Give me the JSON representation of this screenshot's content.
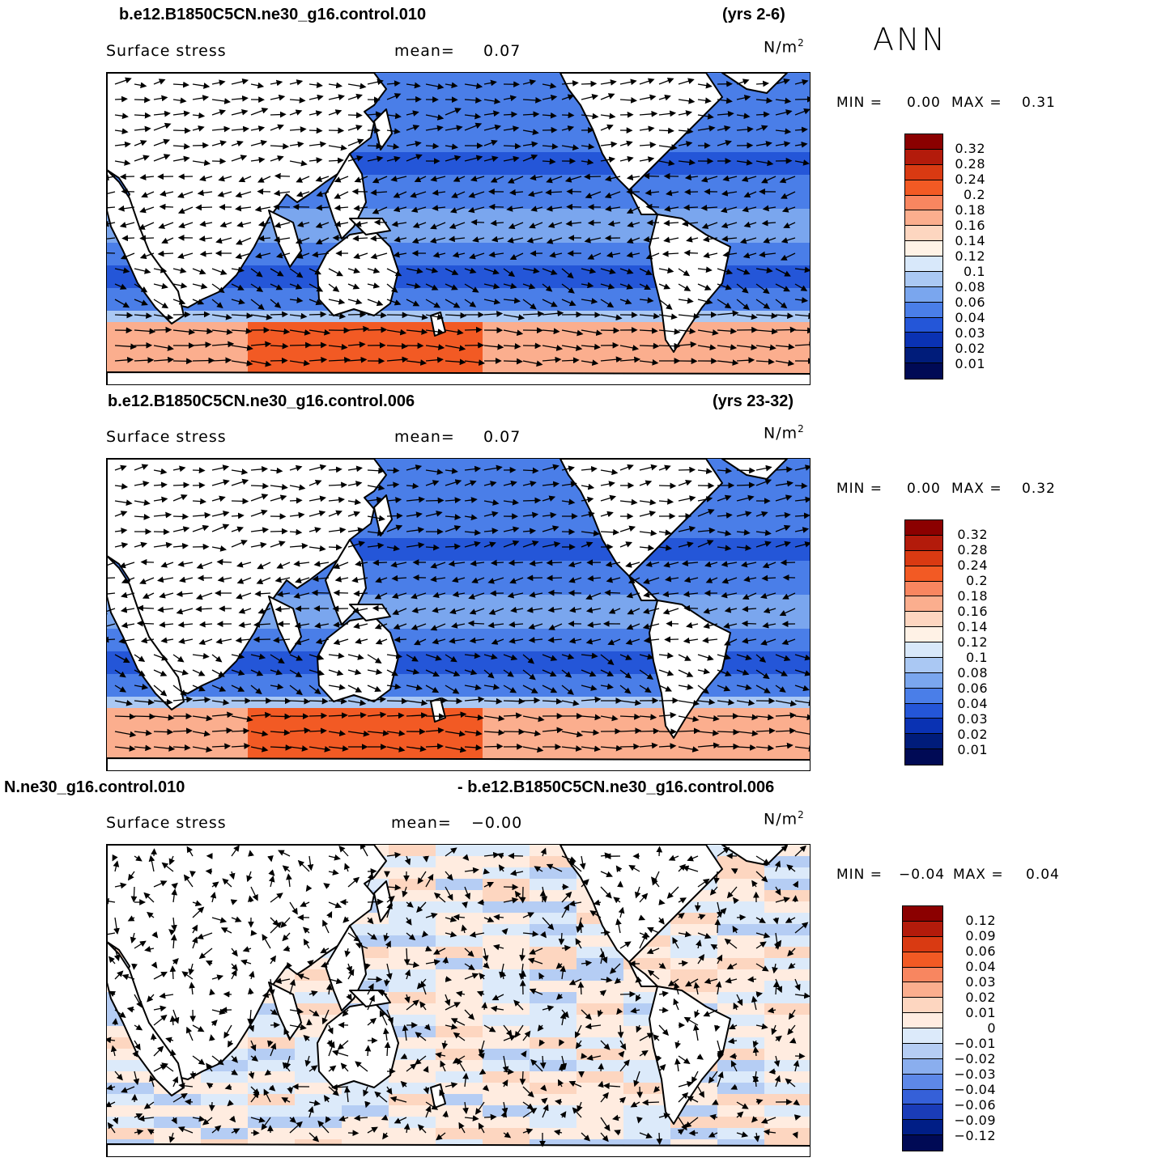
{
  "season": "ANN",
  "field_name": "Surface stress",
  "units_base": "N/m",
  "units_exp": "2",
  "panels": [
    {
      "case": "b.e12.B1850C5CN.ne30_g16.control.010",
      "years": "(yrs 2-6)",
      "mean_label": "mean=",
      "mean_value": "0.07",
      "min_label": "MIN =",
      "min_value": "0.00",
      "max_label": "MAX =",
      "max_value": "0.31",
      "colorbar_labels": [
        "0.32",
        "0.28",
        "0.24",
        "0.2",
        "0.18",
        "0.16",
        "0.14",
        "0.12",
        "0.1",
        "0.08",
        "0.06",
        "0.04",
        "0.03",
        "0.02",
        "0.01"
      ]
    },
    {
      "case": "b.e12.B1850C5CN.ne30_g16.control.006",
      "years": "(yrs 23-32)",
      "mean_label": "mean=",
      "mean_value": "0.07",
      "min_label": "MIN =",
      "min_value": "0.00",
      "max_label": "MAX =",
      "max_value": "0.32",
      "colorbar_labels": [
        "0.32",
        "0.28",
        "0.24",
        "0.2",
        "0.18",
        "0.16",
        "0.14",
        "0.12",
        "0.1",
        "0.08",
        "0.06",
        "0.04",
        "0.03",
        "0.02",
        "0.01"
      ]
    },
    {
      "case_left": "N.ne30_g16.control.010",
      "case_right": "- b.e12.B1850C5CN.ne30_g16.control.006",
      "mean_label": "mean=",
      "mean_value": "−0.00",
      "min_label": "MIN =",
      "min_value": "−0.04",
      "max_label": "MAX =",
      "max_value": "0.04",
      "colorbar_labels": [
        "0.12",
        "0.09",
        "0.06",
        "0.04",
        "0.03",
        "0.02",
        "0.01",
        "0",
        "−0.01",
        "−0.02",
        "−0.03",
        "−0.04",
        "−0.06",
        "−0.09",
        "−0.12"
      ]
    }
  ],
  "colors": {
    "abs_scale": [
      "#8b0000",
      "#b31b0b",
      "#d93a12",
      "#f25a24",
      "#f88660",
      "#fbae8e",
      "#fdd6c0",
      "#fff2e6",
      "#d8e8fa",
      "#aac8f3",
      "#7aa6ee",
      "#4a7ee8",
      "#2456d8",
      "#0a32b3",
      "#001c7a",
      "#000a55"
    ],
    "diff_scale": [
      "#8b0000",
      "#b31b0b",
      "#d93a12",
      "#f25a24",
      "#f88660",
      "#fbae8e",
      "#fdd6c0",
      "#ffece0",
      "#dceafa",
      "#b5cdf4",
      "#8aaeee",
      "#5d88e8",
      "#3560d8",
      "#1a3cb8",
      "#001e86",
      "#000a55"
    ]
  }
}
